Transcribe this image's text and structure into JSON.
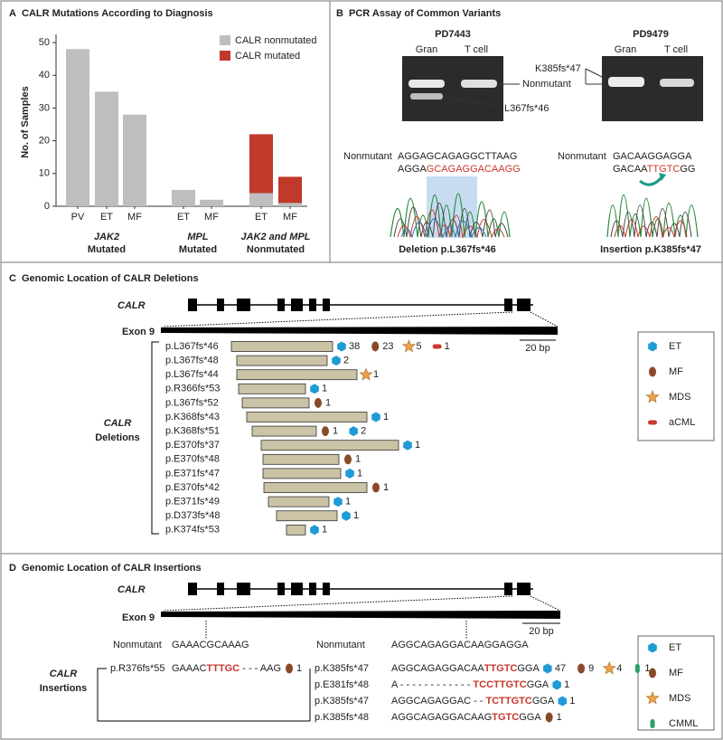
{
  "chart_data": {
    "type": "bar",
    "letter": "A",
    "title": "CALR Mutations According to Diagnosis",
    "y_label": "No. of Samples",
    "categories": [
      "PV",
      "ET",
      "MF",
      "ET",
      "MF",
      "ET",
      "MF"
    ],
    "groups": [
      [
        "JAK2",
        "Mutated"
      ],
      [
        "MPL",
        "Mutated"
      ],
      [
        "JAK2 and MPL",
        "Nonmutated"
      ]
    ],
    "series": [
      {
        "name": "CALR nonmutated",
        "color": "#bcbec0",
        "values": [
          48,
          35,
          28,
          5,
          2,
          4,
          1
        ]
      },
      {
        "name": "CALR mutated",
        "color": "#c0392b",
        "values": [
          0,
          0,
          0,
          0,
          0,
          18,
          8
        ]
      }
    ],
    "stacked": true,
    "ylim": [
      0,
      52.5
    ],
    "yticks": [
      0,
      10,
      20,
      30,
      40,
      50
    ]
  },
  "panel_b": {
    "letter": "B",
    "title": "PCR Assay of Common Variants",
    "gels": [
      {
        "sample": "PD7443",
        "lanes": [
          "Gran",
          "T cell"
        ]
      },
      {
        "sample": "PD9479",
        "lanes": [
          "Gran",
          "T cell"
        ]
      }
    ],
    "band_labels": [
      "L367fs*46",
      "Nonmutant",
      "K385fs*47"
    ],
    "sequences": [
      {
        "label": "Nonmutant",
        "reference": "AGGAGCAGAGGCTTAAG",
        "variant": [
          {
            "text": "AGGA"
          },
          {
            "text": "GCAGAGGACAAGG",
            "highlight": true
          }
        ],
        "caption": "Deletion p.L367fs*46"
      },
      {
        "label": "Nonmutant",
        "reference": "GACAAGGAGGA",
        "variant": [
          {
            "text": "GACAA"
          },
          {
            "text": "TTGTC",
            "highlight": true
          },
          {
            "text": "GG"
          }
        ],
        "caption": "Insertion  p.K385fs*47"
      }
    ]
  },
  "panel_c": {
    "letter": "C",
    "title": "Genomic Location of CALR Deletions",
    "gene": "CALR",
    "exon": "Exon 9",
    "scale": "20 bp",
    "group_label": [
      "CALR",
      "Deletions"
    ],
    "legend": [
      "ET",
      "MF",
      "MDS",
      "aCML"
    ],
    "rows": [
      {
        "label": "p.L367fs*46",
        "counts": [
          {
            "type": "ET",
            "n": 38
          },
          {
            "type": "MF",
            "n": 23
          },
          {
            "type": "MDS",
            "n": 5
          },
          {
            "type": "aCML",
            "n": 1
          }
        ]
      },
      {
        "label": "p.L367fs*48",
        "counts": [
          {
            "type": "ET",
            "n": 2
          }
        ]
      },
      {
        "label": "p.L367fs*44",
        "counts": [
          {
            "type": "MDS",
            "n": 1
          }
        ]
      },
      {
        "label": "p.R366fs*53",
        "counts": [
          {
            "type": "ET",
            "n": 1
          }
        ]
      },
      {
        "label": "p.L367fs*52",
        "counts": [
          {
            "type": "MF",
            "n": 1
          }
        ]
      },
      {
        "label": "p.K368fs*43",
        "counts": [
          {
            "type": "ET",
            "n": 1
          }
        ]
      },
      {
        "label": "p.K368fs*51",
        "counts": [
          {
            "type": "MF",
            "n": 1
          },
          {
            "type": "ET",
            "n": 2
          }
        ]
      },
      {
        "label": "p.E370fs*37",
        "counts": [
          {
            "type": "ET",
            "n": 1
          }
        ]
      },
      {
        "label": "p.E370fs*48",
        "counts": [
          {
            "type": "MF",
            "n": 1
          }
        ]
      },
      {
        "label": "p.E371fs*47",
        "counts": [
          {
            "type": "ET",
            "n": 1
          }
        ]
      },
      {
        "label": "p.E370fs*42",
        "counts": [
          {
            "type": "MF",
            "n": 1
          }
        ]
      },
      {
        "label": "p.E371fs*49",
        "counts": [
          {
            "type": "ET",
            "n": 1
          }
        ]
      },
      {
        "label": "p.D373fs*48",
        "counts": [
          {
            "type": "ET",
            "n": 1
          }
        ]
      },
      {
        "label": "p.K374fs*53",
        "counts": [
          {
            "type": "ET",
            "n": 1
          }
        ]
      }
    ]
  },
  "panel_d": {
    "letter": "D",
    "title": "Genomic Location of CALR Insertions",
    "gene": "CALR",
    "exon": "Exon 9",
    "scale": "20 bp",
    "group_label": [
      "CALR",
      "Insertions"
    ],
    "legend": [
      "ET",
      "MF",
      "MDS",
      "CMML"
    ],
    "nonmutant": [
      {
        "label": "Nonmutant",
        "sequence": "GAAACGCAAAG"
      },
      {
        "label": "Nonmutant",
        "sequence": "AGGCAGAGGACAAGGAGGA"
      }
    ],
    "rows": [
      {
        "label": "p.R376fs*55",
        "sequence": [
          {
            "text": "GAAAC"
          },
          {
            "text": "TTTGC",
            "highlight": true
          },
          {
            "text": " - - - AAG"
          }
        ],
        "counts": [
          {
            "type": "MF",
            "n": 1
          }
        ]
      },
      {
        "label": "p.K385fs*47",
        "sequence": [
          {
            "text": "AGGCAGAGGACAA"
          },
          {
            "text": "TTGTC",
            "highlight": true
          },
          {
            "text": "GGA"
          }
        ],
        "counts": [
          {
            "type": "ET",
            "n": 47
          },
          {
            "type": "MF",
            "n": 9
          },
          {
            "type": "MDS",
            "n": 4
          },
          {
            "type": "CMML",
            "n": 1
          }
        ]
      },
      {
        "label": "p.E381fs*48",
        "sequence": [
          {
            "text": "A - - - - - - - - - - - - "
          },
          {
            "text": "TCCTTGTC",
            "highlight": true
          },
          {
            "text": "GGA"
          }
        ],
        "counts": [
          {
            "type": "ET",
            "n": 1
          }
        ]
      },
      {
        "label": "p.K385fs*47",
        "sequence": [
          {
            "text": "AGGCAGAGGAC - - "
          },
          {
            "text": "TCTTGTC",
            "highlight": true
          },
          {
            "text": "GGA"
          }
        ],
        "counts": [
          {
            "type": "ET",
            "n": 1
          }
        ]
      },
      {
        "label": "p.K385fs*48",
        "sequence": [
          {
            "text": "AGGCAGAGGACAAG"
          },
          {
            "text": "TGTC",
            "highlight": true
          },
          {
            "text": "GGA"
          }
        ],
        "counts": [
          {
            "type": "MF",
            "n": 1
          }
        ]
      }
    ]
  }
}
